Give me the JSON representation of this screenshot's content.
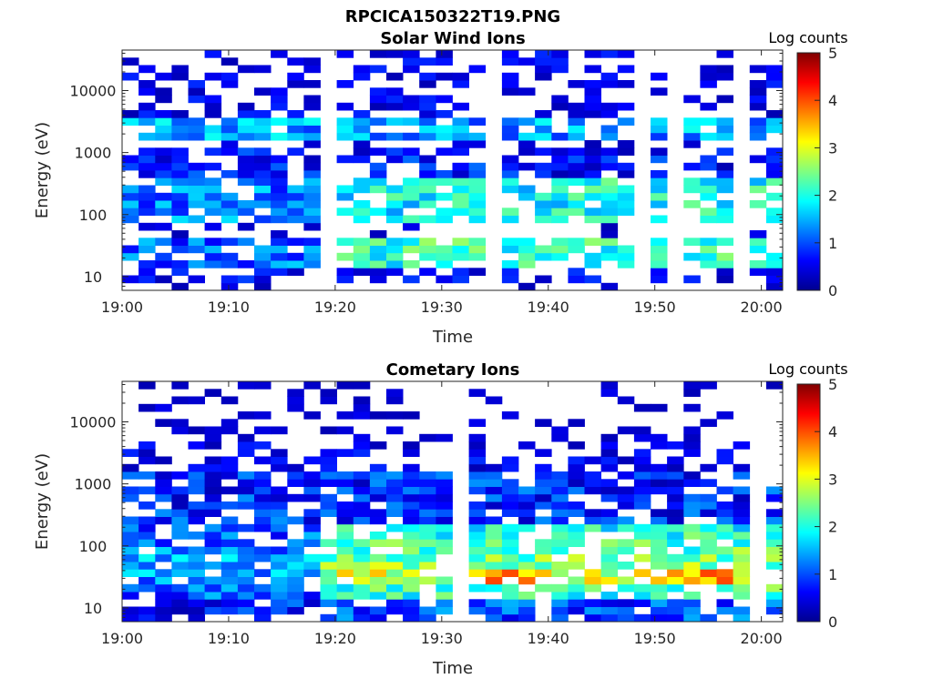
{
  "figure": {
    "title": "RPCICA150322T19.PNG"
  },
  "colorbar": {
    "label": "Log counts",
    "ticks": [
      "0",
      "1",
      "2",
      "3",
      "4",
      "5"
    ],
    "range": [
      0,
      5
    ]
  },
  "chart_data": [
    {
      "type": "heatmap",
      "title": "Solar Wind Ions",
      "xlabel": "Time",
      "ylabel": "Energy (eV)",
      "x_tick_labels": [
        "19:00",
        "19:10",
        "19:20",
        "19:30",
        "19:40",
        "19:50",
        "20:00"
      ],
      "x_range_minutes": [
        0,
        62
      ],
      "y_tick_labels": [
        "10",
        "100",
        "1000",
        "10000"
      ],
      "y_scale": "log",
      "y_range_eV": [
        6,
        45000
      ],
      "color_range": [
        0,
        5
      ],
      "dominant": {
        "low_band_eV": [
          15,
          45
        ],
        "mid_band_eV": [
          80,
          350
        ],
        "high_band_eV": [
          1500,
          3500
        ],
        "peak_log_counts": 2.8
      }
    },
    {
      "type": "heatmap",
      "title": "Cometary Ions",
      "xlabel": "Time",
      "ylabel": "Energy (eV)",
      "x_tick_labels": [
        "19:00",
        "19:10",
        "19:20",
        "19:30",
        "19:40",
        "19:50",
        "20:00"
      ],
      "x_range_minutes": [
        0,
        62
      ],
      "y_tick_labels": [
        "10",
        "100",
        "1000",
        "10000"
      ],
      "y_scale": "log",
      "y_range_eV": [
        6,
        45000
      ],
      "color_range": [
        0,
        5
      ],
      "dominant": {
        "core_band_eV": [
          20,
          200
        ],
        "peak_energy_eV": 35,
        "peak_log_counts": 3.8
      }
    }
  ]
}
